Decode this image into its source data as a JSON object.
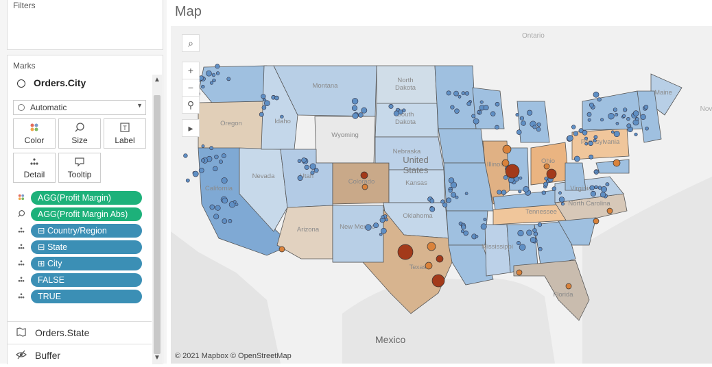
{
  "left_panel": {
    "filters_title": "Filters",
    "marks_title": "Marks",
    "layer_name": "Orders.City",
    "mark_type": "Automatic",
    "cards": [
      {
        "label": "Color",
        "icon": "color-dots-icon"
      },
      {
        "label": "Size",
        "icon": "size-icon"
      },
      {
        "label": "Label",
        "icon": "label-icon"
      },
      {
        "label": "Detail",
        "icon": "detail-icon"
      },
      {
        "label": "Tooltip",
        "icon": "tooltip-icon"
      }
    ],
    "pills": [
      {
        "label": "AGG(Profit Margin)",
        "color": "#1db17a",
        "icon": "color-dots-icon"
      },
      {
        "label": "AGG(Profit Margin Abs)",
        "color": "#1db17a",
        "icon": "size-icon"
      },
      {
        "label": "⊟ Country/Region",
        "color": "#3b8fb5",
        "icon": "detail-icon"
      },
      {
        "label": "⊟ State",
        "color": "#3b8fb5",
        "icon": "detail-icon"
      },
      {
        "label": "⊞ City",
        "color": "#3b8fb5",
        "icon": "detail-icon"
      },
      {
        "label": "FALSE",
        "color": "#3b8fb5",
        "icon": "detail-icon"
      },
      {
        "label": "TRUE",
        "color": "#3b8fb5",
        "icon": "detail-icon"
      }
    ],
    "lower_layers": [
      {
        "label": "Orders.State",
        "icon": "map-layer-icon"
      },
      {
        "label": "Buffer",
        "icon": "hidden-eye-icon"
      }
    ]
  },
  "map": {
    "title": "Map",
    "credits": "© 2021 Mapbox © OpenStreetMap",
    "tools": [
      "search-icon",
      "zoom-in-icon",
      "zoom-out-icon",
      "pin-icon",
      "play-icon"
    ],
    "base_labels": {
      "mexico": "Mexico",
      "ontario": "Ontario",
      "nova": "Nova"
    },
    "states": [
      {
        "name": "North\nDakota",
        "fill": "#d0dde8"
      },
      {
        "name": "South\nDakota",
        "fill": "#c7d9ea"
      },
      {
        "name": "Montana",
        "fill": "#b8cfe6"
      },
      {
        "name": "Wyoming",
        "fill": "#e9e9e9"
      },
      {
        "name": "Idaho",
        "fill": "#c4d7ea"
      },
      {
        "name": "Oregon",
        "fill": "#e1cfb8"
      },
      {
        "name": "Nevada",
        "fill": "#c7d9ea"
      },
      {
        "name": "Utah",
        "fill": "#b3cbe5"
      },
      {
        "name": "Colorado",
        "fill": "#c9a989"
      },
      {
        "name": "Arizona",
        "fill": "#e2d2c0"
      },
      {
        "name": "New Mexico",
        "fill": "#b8cfe6"
      },
      {
        "name": "Texas",
        "fill": "#d7b48f"
      },
      {
        "name": "Oklahoma",
        "fill": "#c4d7ea"
      },
      {
        "name": "Kansas",
        "fill": "#c4d7ea"
      },
      {
        "name": "Nebraska",
        "fill": "#bcd1e8"
      },
      {
        "name": "United\nStates",
        "fill": "none"
      },
      {
        "name": "Illinois",
        "fill": "#e0b184"
      },
      {
        "name": "Ohio",
        "fill": "#eab481"
      },
      {
        "name": "Pennsylvania",
        "fill": "#f0c69b"
      },
      {
        "name": "Tennessee",
        "fill": "#f0c69b"
      },
      {
        "name": "North Carolina",
        "fill": "#d7c8b8"
      },
      {
        "name": "Florida",
        "fill": "#c9bcae"
      },
      {
        "name": "Mississippi",
        "fill": "#bcd1e8"
      },
      {
        "name": "Virginia",
        "fill": "#b8cfe6"
      },
      {
        "name": "Maine",
        "fill": "#b8cfe6"
      },
      {
        "name": "California",
        "fill": "#7fa9d4"
      }
    ],
    "colors": {
      "profit_blue": "#5f8fc4",
      "loss_orange": "#d9823b",
      "loss_dark": "#a33a1a"
    }
  }
}
